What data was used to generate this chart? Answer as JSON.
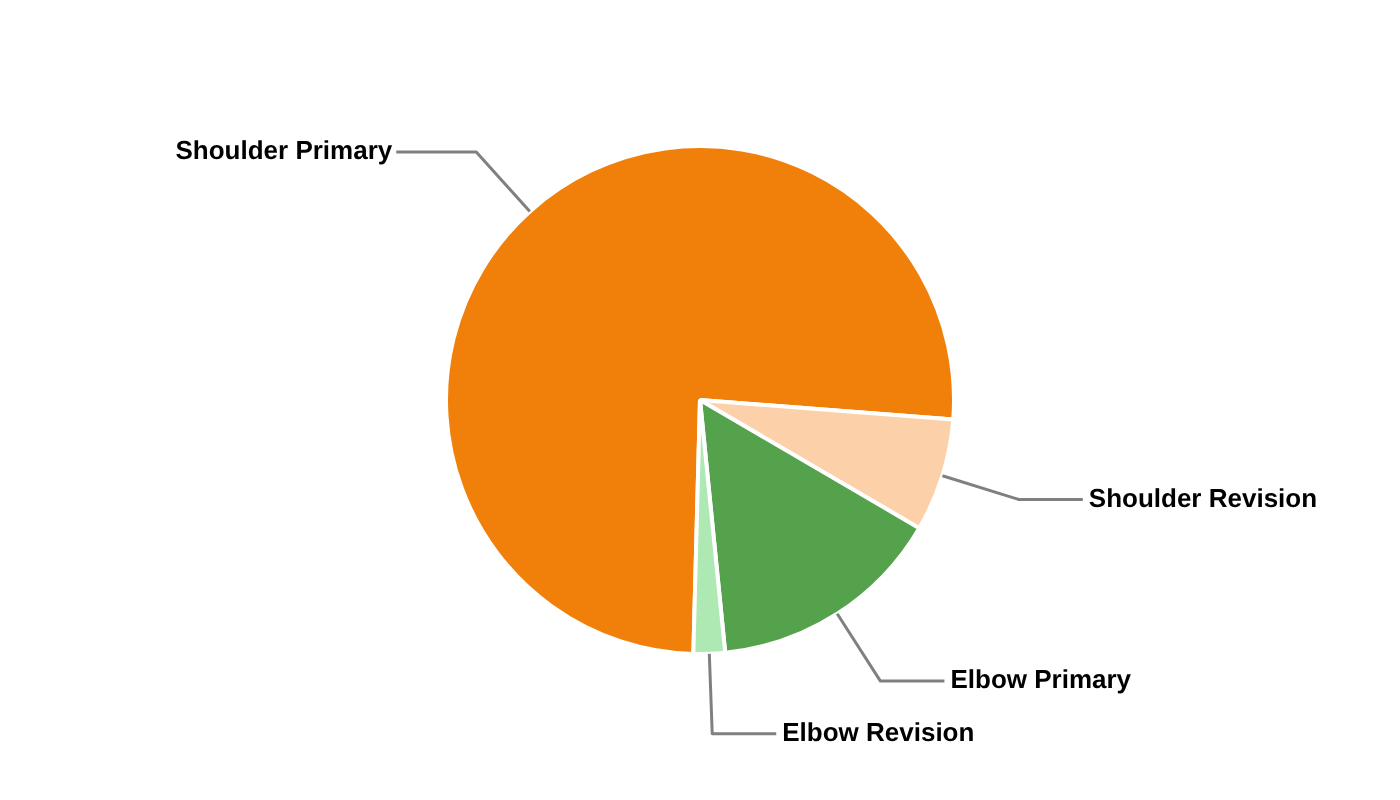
{
  "chart_data": {
    "type": "pie",
    "categories": [
      "Shoulder Primary",
      "Shoulder Revision",
      "Elbow Primary",
      "Elbow Revision"
    ],
    "values": [
      75.8,
      7.2,
      15.0,
      2.0
    ],
    "colors": [
      "#f0800a",
      "#fcd1a9",
      "#54a24b",
      "#aee8b3"
    ]
  }
}
